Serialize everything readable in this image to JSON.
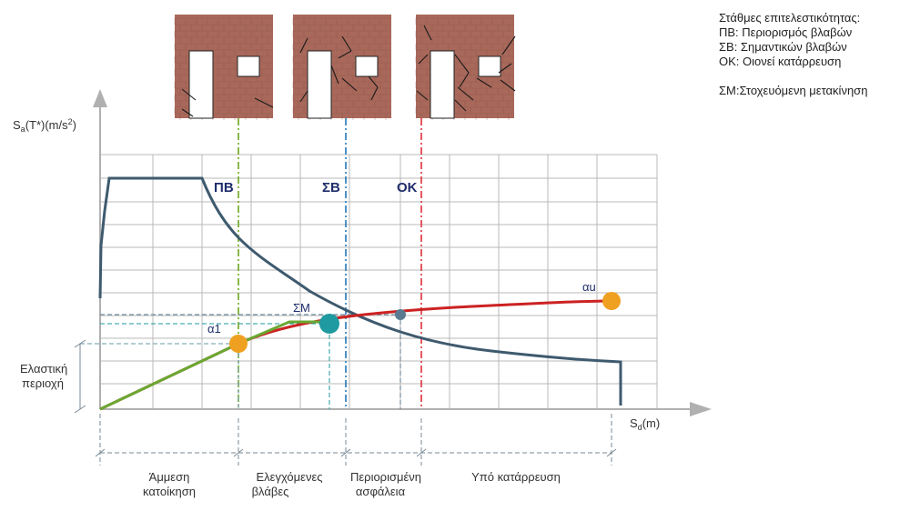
{
  "legend": {
    "title": "Στάθμες επιτελεστικότητας:",
    "items": [
      "ΠΒ: Περιορισμός βλαβών",
      "ΣΒ: Σημαντικών βλαβών",
      "ΟΚ: Οιονεί κατάρρευση"
    ],
    "target": "ΣΜ:Στοχευόμενη μετακίνηση"
  },
  "axes": {
    "y_label": "S",
    "y_sub": "a",
    "y_rest": "(T*)(m/s",
    "y_sup": "2",
    "y_end": ")",
    "x_label": "S",
    "x_sub": "d",
    "x_rest": "(m)"
  },
  "levels": [
    {
      "abbr": "ΠΒ",
      "color": "#6aa81e"
    },
    {
      "abbr": "ΣΒ",
      "color": "#2277b8"
    },
    {
      "abbr": "ΟΚ",
      "color": "#e0303a"
    }
  ],
  "points": {
    "a1": "α1",
    "target": "ΣΜ",
    "au": "αu"
  },
  "elastic_region": [
    "Ελαστική",
    "περιοχή"
  ],
  "zones": [
    {
      "line1": "Άμμεση",
      "line2": "κατοίκηση"
    },
    {
      "line1": "Ελεγχόμενες",
      "line2": "βλάβες"
    },
    {
      "line1": "Περιορισμένη",
      "line2": "ασφάλεια"
    },
    {
      "line1": "Υπό κατάρρευση",
      "line2": ""
    }
  ],
  "colors": {
    "grid": "#b8b8b8",
    "spectrum": "#3e5a6e",
    "capacity": "#cc2222",
    "bilinear": "#6aa832",
    "marker_orange": "#f0a020",
    "marker_teal": "#1e9aa0",
    "marker_gray": "#5a7a90",
    "brick": "#a8685a"
  }
}
